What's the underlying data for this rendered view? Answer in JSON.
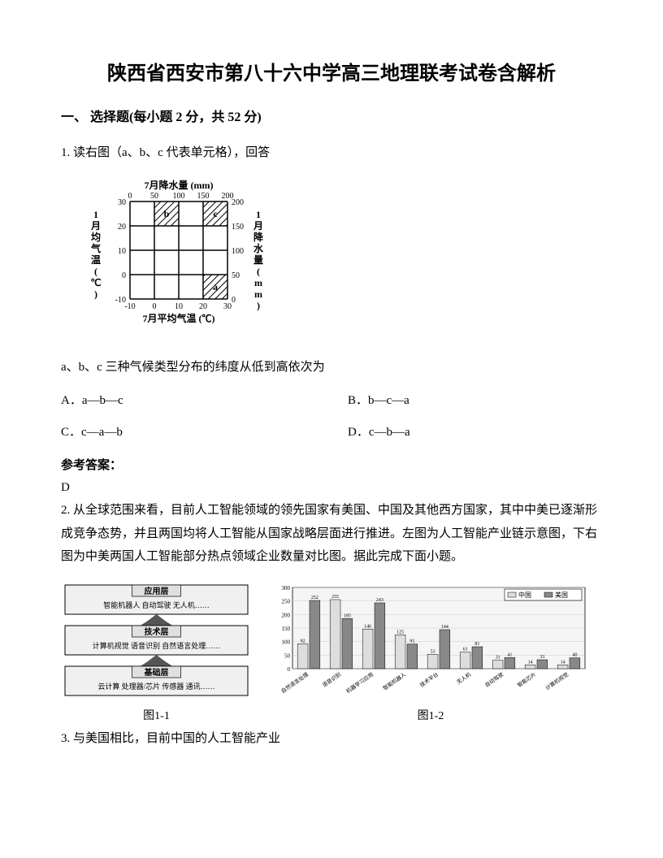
{
  "title": "陕西省西安市第八十六中学高三地理联考试卷含解析",
  "section1": {
    "header": "一、 选择题(每小题 2 分，共 52 分)",
    "q1": {
      "prompt": "1. 读右图（a、b、c 代表单元格），回答",
      "sub": "a、b、c 三种气候类型分布的纬度从低到高依次为",
      "options": {
        "A": "A．a—b—c",
        "B": "B．b—c—a",
        "C": "C．c—a—b",
        "D": "D．c—b—a"
      },
      "answer_label": "参考答案：",
      "answer": "D",
      "chart": {
        "top_axis_label": "7月降水量 (mm)",
        "top_ticks": [
          "0",
          "50",
          "100",
          "150",
          "200"
        ],
        "bottom_axis_label": "7月平均气温 (℃)",
        "bottom_ticks": [
          "-10",
          "0",
          "10",
          "20",
          "30"
        ],
        "left_axis_label": "1月均气温(℃)",
        "left_ticks": [
          "30",
          "20",
          "10",
          "0",
          "-10"
        ],
        "right_axis_label": "1月降水量(mm)",
        "right_ticks": [
          "200",
          "150",
          "100",
          "50",
          "0"
        ],
        "grid_color": "#000000",
        "cell_labels": [
          "a",
          "b",
          "c"
        ],
        "shaded_cells": [
          {
            "col": 1,
            "row": 0,
            "label": "b"
          },
          {
            "col": 3,
            "row": 0,
            "label": "c"
          },
          {
            "col": 3,
            "row": 3,
            "label": "a"
          }
        ]
      }
    },
    "q2": {
      "prompt": "2. 从全球范围来看，目前人工智能领域的领先国家有美国、中国及其他西方国家，其中中美已逐渐形成竞争态势，并且两国均将人工智能从国家战略层面进行推进。左图为人工智能产业链示意图，下右图为中美两国人工智能部分热点领域企业数量对比图。据此完成下面小题。",
      "fig1": {
        "caption": "图1-1",
        "layers": [
          {
            "title": "应用层",
            "items": [
              "智能机器人",
              "自动驾驶",
              "无人机……"
            ]
          },
          {
            "title": "技术层",
            "items": [
              "计算机视觉",
              "语音识别",
              "自然语言处理……"
            ]
          },
          {
            "title": "基础层",
            "items": [
              "云计算",
              "处理器/芯片",
              "传感器",
              "通讯……"
            ]
          }
        ],
        "arrow_color": "#555555",
        "border_color": "#000000"
      },
      "fig2": {
        "caption": "图1-2",
        "legend": [
          "中国",
          "美国"
        ],
        "categories": [
          "自然语言处理",
          "语音识别",
          "机器学习应用",
          "智能机器人",
          "技术平台",
          "无人机",
          "自动驾驶",
          "智能芯片",
          "计算机视觉"
        ],
        "china_values": [
          92,
          255,
          146,
          125,
          53,
          61,
          31,
          14,
          14
        ],
        "usa_values": [
          252,
          185,
          243,
          91,
          144,
          81,
          41,
          33,
          40
        ],
        "ylim": [
          0,
          300
        ],
        "ytick_step": 50,
        "china_color": "#dddddd",
        "usa_color": "#888888",
        "grid_color": "#cccccc",
        "background_color": "#f5f5f5"
      },
      "q3": "3. 与美国相比，目前中国的人工智能产业"
    }
  }
}
